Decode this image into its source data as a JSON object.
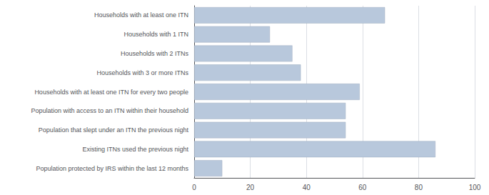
{
  "chart_data": {
    "type": "bar",
    "orientation": "horizontal",
    "categories": [
      "Households with at least one ITN",
      "Households with 1 ITN",
      "Households with 2 ITNs",
      "Households with 3 or more ITNs",
      "Households with at least one ITN for every two people",
      "Population with access to an ITN within their household",
      "Population that slept under an ITN the previous night",
      "Existing ITNs used the previous night",
      "Population protected by IRS within the last 12 months"
    ],
    "values": [
      68,
      27,
      35,
      38,
      59,
      54,
      54,
      86,
      10
    ],
    "color": "#b8c8dc",
    "xlim": [
      0,
      100
    ],
    "xticks": [
      0,
      20,
      40,
      60,
      80,
      100
    ],
    "grid": true
  }
}
